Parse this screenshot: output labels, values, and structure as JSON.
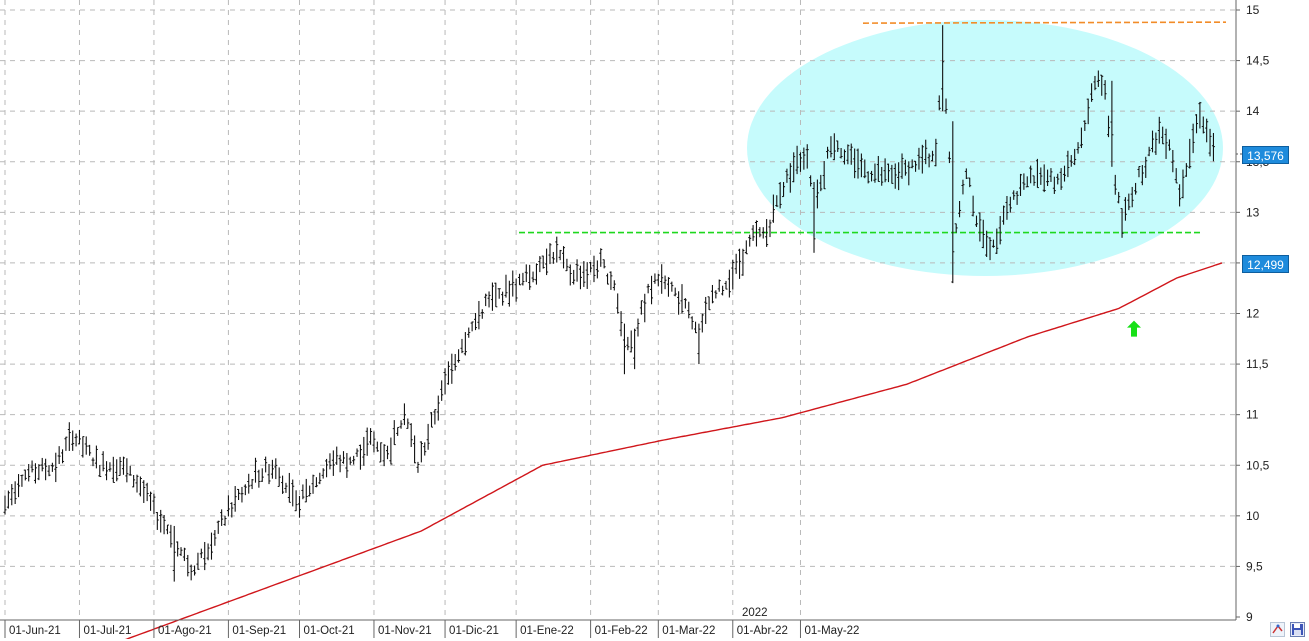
{
  "chart_data": {
    "type": "ohlc",
    "y_axis": {
      "min": 9,
      "max": 15,
      "tick_labels": [
        "9",
        "9,5",
        "10",
        "10,5",
        "11",
        "11,5",
        "12",
        "12,5",
        "13",
        "13,5",
        "14",
        "14,5",
        "15"
      ],
      "side": "right"
    },
    "x_axis": {
      "tick_labels": [
        "01-Jun-21",
        "01-Jul-21",
        "01-Ago-21",
        "01-Sep-21",
        "01-Oct-21",
        "01-Nov-21",
        "01-Dic-21",
        "01-Ene-22",
        "01-Feb-22",
        "01-Mar-22",
        "01-Abr-22",
        "01-May-22"
      ],
      "year_marker": "2022"
    },
    "grid": true,
    "price_series": {
      "name": "",
      "color": "#111111",
      "anchors": [
        [
          0,
          10.1
        ],
        [
          5,
          10.4
        ],
        [
          15,
          10.5
        ],
        [
          20,
          10.8
        ],
        [
          28,
          10.5
        ],
        [
          34,
          10.5
        ],
        [
          40,
          10.3
        ],
        [
          45,
          10.0
        ],
        [
          50,
          9.8
        ],
        [
          55,
          9.45
        ],
        [
          60,
          9.7
        ],
        [
          67,
          10.1
        ],
        [
          74,
          10.4
        ],
        [
          80,
          10.5
        ],
        [
          86,
          10.1
        ],
        [
          92,
          10.35
        ],
        [
          97,
          10.55
        ],
        [
          103,
          10.55
        ],
        [
          108,
          10.75
        ],
        [
          113,
          10.6
        ],
        [
          118,
          11.05
        ],
        [
          122,
          10.5
        ],
        [
          126,
          10.9
        ],
        [
          132,
          11.5
        ],
        [
          137,
          11.8
        ],
        [
          142,
          12.1
        ],
        [
          147,
          12.2
        ],
        [
          152,
          12.3
        ],
        [
          156,
          12.4
        ],
        [
          159,
          12.55
        ],
        [
          163,
          12.6
        ],
        [
          167,
          12.4
        ],
        [
          172,
          12.4
        ],
        [
          176,
          12.5
        ],
        [
          180,
          12.3
        ],
        [
          183,
          11.7
        ],
        [
          186,
          11.8
        ],
        [
          190,
          12.2
        ],
        [
          194,
          12.4
        ],
        [
          198,
          12.2
        ],
        [
          202,
          12.0
        ],
        [
          205,
          11.75
        ],
        [
          208,
          12.1
        ],
        [
          213,
          12.3
        ],
        [
          217,
          12.5
        ],
        [
          221,
          12.75
        ],
        [
          225,
          12.8
        ],
        [
          229,
          13.2
        ],
        [
          233,
          13.45
        ],
        [
          237,
          13.6
        ],
        [
          239,
          13.05
        ],
        [
          241,
          13.25
        ],
        [
          244,
          13.7
        ],
        [
          248,
          13.6
        ],
        [
          255,
          13.4
        ],
        [
          262,
          13.35
        ],
        [
          270,
          13.5
        ],
        [
          275,
          13.6
        ],
        [
          277,
          14.5
        ],
        [
          279,
          13.5
        ],
        [
          281,
          12.9
        ],
        [
          284,
          13.4
        ],
        [
          288,
          12.8
        ],
        [
          292,
          12.65
        ],
        [
          295,
          13.0
        ],
        [
          300,
          13.25
        ],
        [
          305,
          13.4
        ],
        [
          310,
          13.3
        ],
        [
          315,
          13.45
        ],
        [
          318,
          13.7
        ],
        [
          321,
          14.2
        ],
        [
          323,
          14.35
        ],
        [
          325,
          14.2
        ],
        [
          327,
          13.5
        ],
        [
          330,
          12.9
        ],
        [
          333,
          13.2
        ],
        [
          337,
          13.5
        ],
        [
          341,
          13.8
        ],
        [
          344,
          13.7
        ],
        [
          347,
          13.2
        ],
        [
          350,
          13.6
        ],
        [
          353,
          14.0
        ],
        [
          355,
          13.8
        ],
        [
          357,
          13.6
        ]
      ]
    },
    "sma_series": {
      "name": "",
      "color": "#d0161b",
      "anchors": [
        [
          0,
          8.75
        ],
        [
          50,
          9.3
        ],
        [
          100,
          9.85
        ],
        [
          140,
          10.5
        ],
        [
          180,
          10.75
        ],
        [
          219,
          10.97
        ],
        [
          260,
          11.3
        ],
        [
          300,
          11.77
        ],
        [
          330,
          12.05
        ],
        [
          349,
          12.35
        ],
        [
          364,
          12.5
        ]
      ]
    },
    "resistance_line": {
      "value": 14.87,
      "color": "#f28c28",
      "style": "dashed"
    },
    "support_line": {
      "value": 12.8,
      "color": "#1ed81e",
      "style": "dashed"
    },
    "highlight_zone": {
      "shape": "ellipse",
      "color": "#c6fbfc"
    },
    "markers": [
      {
        "type": "up-arrow",
        "color": "#17e017",
        "value": 11.85
      }
    ],
    "price_tags": {
      "last_price": "13,576",
      "sma_value": "12,499"
    }
  }
}
